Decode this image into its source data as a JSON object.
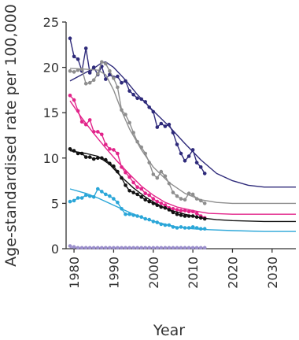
{
  "chart_data": {
    "type": "line",
    "xlabel": "Year",
    "ylabel": "Age-standardised rate per 100,000",
    "xlim": [
      1978,
      2036
    ],
    "ylim": [
      0,
      25
    ],
    "x_ticks": [
      1980,
      1990,
      2000,
      2010,
      2020,
      2030
    ],
    "y_ticks": [
      0,
      5,
      10,
      15,
      20,
      25
    ],
    "legend": "none",
    "grid": false,
    "series": [
      {
        "color": "#2e2a7a",
        "observed": [
          [
            1979,
            23.2
          ],
          [
            1980,
            21.2
          ],
          [
            1981,
            20.9
          ],
          [
            1982,
            19.6
          ],
          [
            1983,
            22.1
          ],
          [
            1984,
            19.4
          ],
          [
            1985,
            20.0
          ],
          [
            1986,
            19.2
          ],
          [
            1987,
            20.1
          ],
          [
            1988,
            18.7
          ],
          [
            1989,
            19.2
          ],
          [
            1990,
            18.9
          ],
          [
            1991,
            19.0
          ],
          [
            1992,
            18.3
          ],
          [
            1993,
            18.5
          ],
          [
            1994,
            17.4
          ],
          [
            1995,
            17.0
          ],
          [
            1996,
            16.6
          ],
          [
            1997,
            16.5
          ],
          [
            1998,
            16.2
          ],
          [
            1999,
            15.6
          ],
          [
            2000,
            15.1
          ],
          [
            2001,
            13.4
          ],
          [
            2002,
            13.8
          ],
          [
            2003,
            13.5
          ],
          [
            2004,
            13.7
          ],
          [
            2005,
            12.8
          ],
          [
            2006,
            11.5
          ],
          [
            2007,
            10.5
          ],
          [
            2008,
            9.7
          ],
          [
            2009,
            10.2
          ],
          [
            2010,
            10.9
          ],
          [
            2011,
            9.5
          ],
          [
            2012,
            9.0
          ],
          [
            2013,
            8.3
          ]
        ],
        "fitted": [
          [
            1979,
            18.5
          ],
          [
            1982,
            19.2
          ],
          [
            1985,
            19.9
          ],
          [
            1987,
            20.5
          ],
          [
            1988,
            20.6
          ],
          [
            1990,
            20.0
          ],
          [
            1993,
            18.6
          ],
          [
            1996,
            17.0
          ],
          [
            2000,
            15.2
          ],
          [
            2004,
            13.5
          ],
          [
            2008,
            11.6
          ],
          [
            2012,
            9.8
          ],
          [
            2016,
            8.3
          ],
          [
            2020,
            7.5
          ],
          [
            2024,
            7.0
          ],
          [
            2028,
            6.8
          ],
          [
            2032,
            6.8
          ],
          [
            2036,
            6.8
          ]
        ]
      },
      {
        "color": "#8e8e8e",
        "observed": [
          [
            1979,
            19.6
          ],
          [
            1980,
            19.5
          ],
          [
            1981,
            19.7
          ],
          [
            1982,
            19.8
          ],
          [
            1983,
            18.2
          ],
          [
            1984,
            18.3
          ],
          [
            1985,
            18.6
          ],
          [
            1986,
            19.3
          ],
          [
            1987,
            20.6
          ],
          [
            1988,
            20.4
          ],
          [
            1989,
            19.6
          ],
          [
            1990,
            18.8
          ],
          [
            1991,
            17.8
          ],
          [
            1992,
            15.3
          ],
          [
            1993,
            14.8
          ],
          [
            1994,
            13.9
          ],
          [
            1995,
            12.8
          ],
          [
            1996,
            11.8
          ],
          [
            1997,
            11.2
          ],
          [
            1998,
            10.5
          ],
          [
            1999,
            9.5
          ],
          [
            2000,
            8.2
          ],
          [
            2001,
            7.8
          ],
          [
            2002,
            8.5
          ],
          [
            2003,
            8.0
          ],
          [
            2004,
            7.2
          ],
          [
            2005,
            6.2
          ],
          [
            2006,
            5.8
          ],
          [
            2007,
            5.5
          ],
          [
            2008,
            5.4
          ],
          [
            2009,
            6.1
          ],
          [
            2010,
            6.0
          ],
          [
            2011,
            5.5
          ],
          [
            2012,
            5.3
          ],
          [
            2013,
            5.0
          ]
        ],
        "fitted": [
          [
            1979,
            19.9
          ],
          [
            1983,
            19.8
          ],
          [
            1986,
            19.7
          ],
          [
            1988,
            19.2
          ],
          [
            1990,
            17.5
          ],
          [
            1992,
            15.2
          ],
          [
            1994,
            13.2
          ],
          [
            1997,
            10.9
          ],
          [
            2000,
            9.0
          ],
          [
            2004,
            7.3
          ],
          [
            2008,
            6.1
          ],
          [
            2012,
            5.4
          ],
          [
            2016,
            5.1
          ],
          [
            2020,
            5.0
          ],
          [
            2028,
            5.0
          ],
          [
            2036,
            5.0
          ]
        ]
      },
      {
        "color": "#e2248a",
        "observed": [
          [
            1979,
            16.9
          ],
          [
            1980,
            16.4
          ],
          [
            1981,
            15.2
          ],
          [
            1982,
            14.0
          ],
          [
            1983,
            13.7
          ],
          [
            1984,
            14.2
          ],
          [
            1985,
            12.9
          ],
          [
            1986,
            12.9
          ],
          [
            1987,
            12.6
          ],
          [
            1988,
            11.5
          ],
          [
            1989,
            11.0
          ],
          [
            1990,
            10.9
          ],
          [
            1991,
            10.5
          ],
          [
            1992,
            9.0
          ],
          [
            1993,
            8.4
          ],
          [
            1994,
            7.9
          ],
          [
            1995,
            7.3
          ],
          [
            1996,
            6.8
          ],
          [
            1997,
            6.6
          ],
          [
            1998,
            6.1
          ],
          [
            1999,
            5.9
          ],
          [
            2000,
            5.5
          ],
          [
            2001,
            5.2
          ],
          [
            2002,
            5.0
          ],
          [
            2003,
            4.8
          ],
          [
            2004,
            4.5
          ],
          [
            2005,
            4.4
          ],
          [
            2006,
            4.3
          ],
          [
            2007,
            4.2
          ],
          [
            2008,
            4.2
          ],
          [
            2009,
            4.1
          ],
          [
            2010,
            4.1
          ],
          [
            2011,
            3.9
          ],
          [
            2012,
            3.6
          ],
          [
            2013,
            3.4
          ]
        ],
        "fitted": [
          [
            1979,
            16.3
          ],
          [
            1982,
            14.4
          ],
          [
            1985,
            12.7
          ],
          [
            1988,
            11.1
          ],
          [
            1991,
            9.6
          ],
          [
            1994,
            8.2
          ],
          [
            1997,
            6.9
          ],
          [
            2000,
            5.9
          ],
          [
            2003,
            5.1
          ],
          [
            2006,
            4.6
          ],
          [
            2010,
            4.2
          ],
          [
            2014,
            3.9
          ],
          [
            2020,
            3.8
          ],
          [
            2028,
            3.8
          ],
          [
            2036,
            3.8
          ]
        ]
      },
      {
        "color": "#111111",
        "observed": [
          [
            1979,
            11.0
          ],
          [
            1980,
            10.8
          ],
          [
            1981,
            10.5
          ],
          [
            1982,
            10.5
          ],
          [
            1983,
            10.1
          ],
          [
            1984,
            10.1
          ],
          [
            1985,
            9.9
          ],
          [
            1986,
            10.0
          ],
          [
            1987,
            10.0
          ],
          [
            1988,
            9.8
          ],
          [
            1989,
            9.4
          ],
          [
            1990,
            9.1
          ],
          [
            1991,
            8.5
          ],
          [
            1992,
            7.8
          ],
          [
            1993,
            7.0
          ],
          [
            1994,
            6.4
          ],
          [
            1995,
            6.2
          ],
          [
            1996,
            6.0
          ],
          [
            1997,
            5.7
          ],
          [
            1998,
            5.4
          ],
          [
            1999,
            5.2
          ],
          [
            2000,
            5.0
          ],
          [
            2001,
            4.8
          ],
          [
            2002,
            4.6
          ],
          [
            2003,
            4.5
          ],
          [
            2004,
            4.3
          ],
          [
            2005,
            4.0
          ],
          [
            2006,
            3.8
          ],
          [
            2007,
            3.7
          ],
          [
            2008,
            3.6
          ],
          [
            2009,
            3.6
          ],
          [
            2010,
            3.6
          ],
          [
            2011,
            3.5
          ],
          [
            2012,
            3.4
          ],
          [
            2013,
            3.3
          ]
        ],
        "fitted": [
          [
            1979,
            10.8
          ],
          [
            1983,
            10.5
          ],
          [
            1986,
            10.2
          ],
          [
            1989,
            9.3
          ],
          [
            1992,
            7.9
          ],
          [
            1995,
            6.7
          ],
          [
            1998,
            5.7
          ],
          [
            2001,
            4.9
          ],
          [
            2004,
            4.3
          ],
          [
            2008,
            3.8
          ],
          [
            2012,
            3.4
          ],
          [
            2016,
            3.2
          ],
          [
            2020,
            3.1
          ],
          [
            2028,
            3.0
          ],
          [
            2036,
            3.0
          ]
        ]
      },
      {
        "color": "#2aa6d8",
        "observed": [
          [
            1979,
            5.2
          ],
          [
            1980,
            5.3
          ],
          [
            1981,
            5.6
          ],
          [
            1982,
            5.6
          ],
          [
            1983,
            5.9
          ],
          [
            1984,
            5.8
          ],
          [
            1985,
            5.7
          ],
          [
            1986,
            6.6
          ],
          [
            1987,
            6.3
          ],
          [
            1988,
            6.0
          ],
          [
            1989,
            5.8
          ],
          [
            1990,
            5.5
          ],
          [
            1991,
            5.1
          ],
          [
            1992,
            4.4
          ],
          [
            1993,
            3.8
          ],
          [
            1994,
            3.8
          ],
          [
            1995,
            3.7
          ],
          [
            1996,
            3.6
          ],
          [
            1997,
            3.5
          ],
          [
            1998,
            3.3
          ],
          [
            1999,
            3.2
          ],
          [
            2000,
            3.0
          ],
          [
            2001,
            2.9
          ],
          [
            2002,
            2.7
          ],
          [
            2003,
            2.6
          ],
          [
            2004,
            2.6
          ],
          [
            2005,
            2.4
          ],
          [
            2006,
            2.3
          ],
          [
            2007,
            2.4
          ],
          [
            2008,
            2.3
          ],
          [
            2009,
            2.3
          ],
          [
            2010,
            2.4
          ],
          [
            2011,
            2.3
          ],
          [
            2012,
            2.2
          ],
          [
            2013,
            2.2
          ]
        ],
        "fitted": [
          [
            1979,
            6.6
          ],
          [
            1983,
            6.1
          ],
          [
            1986,
            5.6
          ],
          [
            1990,
            4.8
          ],
          [
            1994,
            4.0
          ],
          [
            1998,
            3.3
          ],
          [
            2002,
            2.8
          ],
          [
            2006,
            2.4
          ],
          [
            2010,
            2.2
          ],
          [
            2014,
            2.1
          ],
          [
            2020,
            2.0
          ],
          [
            2028,
            1.9
          ],
          [
            2036,
            1.9
          ]
        ]
      },
      {
        "color": "#9b8fcc",
        "observed": [
          [
            1979,
            0.3
          ],
          [
            1980,
            0.2
          ],
          [
            1981,
            0.1
          ],
          [
            1982,
            0.1
          ],
          [
            1983,
            0.1
          ],
          [
            1984,
            0.1
          ],
          [
            1985,
            0.1
          ],
          [
            1986,
            0.1
          ],
          [
            1987,
            0.1
          ],
          [
            1988,
            0.1
          ],
          [
            1989,
            0.1
          ],
          [
            1990,
            0.1
          ],
          [
            1991,
            0.1
          ],
          [
            1992,
            0.1
          ],
          [
            1993,
            0.1
          ],
          [
            1994,
            0.1
          ],
          [
            1995,
            0.1
          ],
          [
            1996,
            0.1
          ],
          [
            1997,
            0.1
          ],
          [
            1998,
            0.1
          ],
          [
            1999,
            0.1
          ],
          [
            2000,
            0.1
          ],
          [
            2001,
            0.1
          ],
          [
            2002,
            0.1
          ],
          [
            2003,
            0.1
          ],
          [
            2004,
            0.1
          ],
          [
            2005,
            0.1
          ],
          [
            2006,
            0.1
          ],
          [
            2007,
            0.1
          ],
          [
            2008,
            0.1
          ],
          [
            2009,
            0.1
          ],
          [
            2010,
            0.1
          ],
          [
            2011,
            0.1
          ],
          [
            2012,
            0.1
          ],
          [
            2013,
            0.1
          ]
        ],
        "fitted": [
          [
            1979,
            0.1
          ],
          [
            2000,
            0.1
          ],
          [
            2013,
            0.1
          ]
        ]
      }
    ]
  }
}
